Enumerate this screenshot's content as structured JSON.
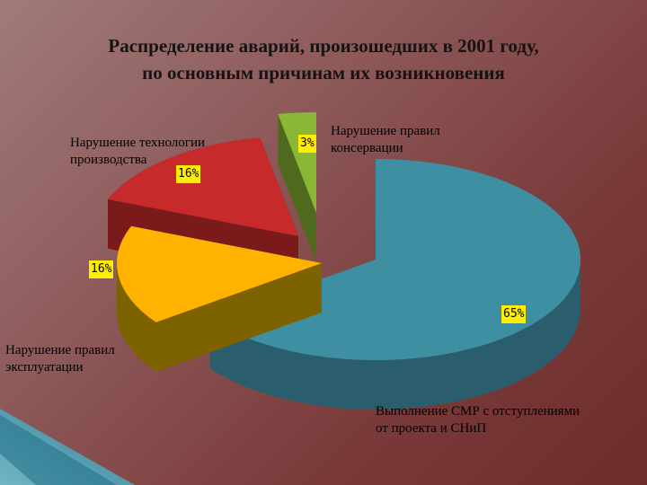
{
  "slide": {
    "title_line1": "Распределение аварий, произошедших в 2001 году,",
    "title_line2": "по основным причинам их возникновения"
  },
  "chart_data": {
    "type": "pie",
    "title": "Распределение аварий, произошедших в 2001 году, по основным причинам их возникновения",
    "style": "3d-exploded",
    "legend": "none (labels placed next to slices)",
    "slices": [
      {
        "label": "Выполнение СМР с отступлениями от проекта и СНиП",
        "value": 65,
        "value_label": "65%",
        "color": "#3f8fa3",
        "side_color": "#2a5e6c"
      },
      {
        "label": "Нарушение правил эксплуатации",
        "value": 16,
        "value_label": "16%",
        "color": "#ffb300",
        "side_color": "#7d6200"
      },
      {
        "label": "Нарушение технологии производства",
        "value": 16,
        "value_label": "16%",
        "color": "#c62a2a",
        "side_color": "#7a1a1a"
      },
      {
        "label": "Нарушение правил консервации",
        "value": 3,
        "value_label": "3%",
        "color": "#8ab836",
        "side_color": "#4f6a1c"
      }
    ]
  },
  "labels": {
    "smr_line1": "Выполнение СМР с отступлениями",
    "smr_line2": "от проекта и СНиП",
    "expl_line1": "Нарушение правил",
    "expl_line2": "эксплуатации",
    "tech_line1": "Нарушение технологии",
    "tech_line2": "производства",
    "cons_line1": "Нарушение правил",
    "cons_line2": "консервации"
  },
  "colors": {
    "background": "#8e5a5a",
    "title": "#141414",
    "percent_box": "#ffee00"
  }
}
